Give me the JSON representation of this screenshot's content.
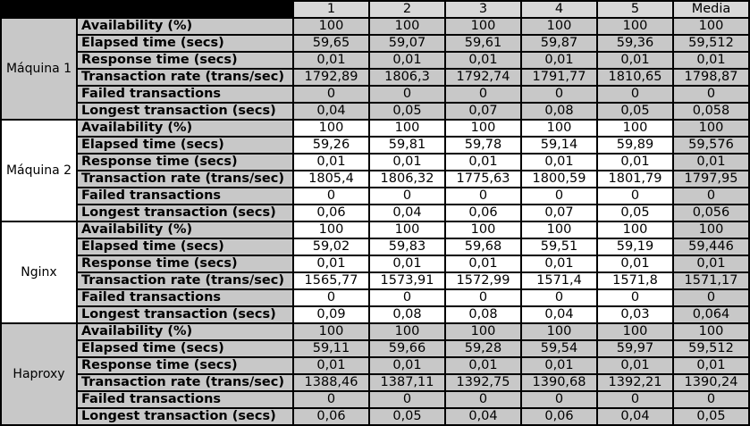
{
  "header": {
    "runs": [
      "1",
      "2",
      "3",
      "4",
      "5"
    ],
    "media": "Media"
  },
  "groups": [
    {
      "name": "Máquina 1",
      "rows": [
        {
          "metric": "Availability (%)",
          "values": [
            "100",
            "100",
            "100",
            "100",
            "100"
          ],
          "media": "100"
        },
        {
          "metric": "Elapsed time (secs)",
          "values": [
            "59,65",
            "59,07",
            "59,61",
            "59,87",
            "59,36"
          ],
          "media": "59,512"
        },
        {
          "metric": "Response time (secs)",
          "values": [
            "0,01",
            "0,01",
            "0,01",
            "0,01",
            "0,01"
          ],
          "media": "0,01"
        },
        {
          "metric": "Transaction rate (trans/sec)",
          "values": [
            "1792,89",
            "1806,3",
            "1792,74",
            "1791,77",
            "1810,65"
          ],
          "media": "1798,87"
        },
        {
          "metric": "Failed transactions",
          "values": [
            "0",
            "0",
            "0",
            "0",
            "0"
          ],
          "media": "0"
        },
        {
          "metric": "Longest transaction (secs)",
          "values": [
            "0,04",
            "0,05",
            "0,07",
            "0,08",
            "0,05"
          ],
          "media": "0,058"
        }
      ]
    },
    {
      "name": "Máquina 2",
      "rows": [
        {
          "metric": "Availability (%)",
          "values": [
            "100",
            "100",
            "100",
            "100",
            "100"
          ],
          "media": "100"
        },
        {
          "metric": "Elapsed time (secs)",
          "values": [
            "59,26",
            "59,81",
            "59,78",
            "59,14",
            "59,89"
          ],
          "media": "59,576"
        },
        {
          "metric": "Response time (secs)",
          "values": [
            "0,01",
            "0,01",
            "0,01",
            "0,01",
            "0,01"
          ],
          "media": "0,01"
        },
        {
          "metric": "Transaction rate (trans/sec)",
          "values": [
            "1805,4",
            "1806,32",
            "1775,63",
            "1800,59",
            "1801,79"
          ],
          "media": "1797,95"
        },
        {
          "metric": "Failed transactions",
          "values": [
            "0",
            "0",
            "0",
            "0",
            "0"
          ],
          "media": "0"
        },
        {
          "metric": "Longest transaction (secs)",
          "values": [
            "0,06",
            "0,04",
            "0,06",
            "0,07",
            "0,05"
          ],
          "media": "0,056"
        }
      ]
    },
    {
      "name": "Nginx",
      "rows": [
        {
          "metric": "Availability (%)",
          "values": [
            "100",
            "100",
            "100",
            "100",
            "100"
          ],
          "media": "100"
        },
        {
          "metric": "Elapsed time (secs)",
          "values": [
            "59,02",
            "59,83",
            "59,68",
            "59,51",
            "59,19"
          ],
          "media": "59,446"
        },
        {
          "metric": "Response time (secs)",
          "values": [
            "0,01",
            "0,01",
            "0,01",
            "0,01",
            "0,01"
          ],
          "media": "0,01"
        },
        {
          "metric": "Transaction rate (trans/sec)",
          "values": [
            "1565,77",
            "1573,91",
            "1572,99",
            "1571,4",
            "1571,8"
          ],
          "media": "1571,17"
        },
        {
          "metric": "Failed transactions",
          "values": [
            "0",
            "0",
            "0",
            "0",
            "0"
          ],
          "media": "0"
        },
        {
          "metric": "Longest transaction (secs)",
          "values": [
            "0,09",
            "0,08",
            "0,08",
            "0,04",
            "0,03"
          ],
          "media": "0,064"
        }
      ]
    },
    {
      "name": "Haproxy",
      "rows": [
        {
          "metric": "Availability (%)",
          "values": [
            "100",
            "100",
            "100",
            "100",
            "100"
          ],
          "media": "100"
        },
        {
          "metric": "Elapsed time (secs)",
          "values": [
            "59,11",
            "59,66",
            "59,28",
            "59,54",
            "59,97"
          ],
          "media": "59,512"
        },
        {
          "metric": "Response time (secs)",
          "values": [
            "0,01",
            "0,01",
            "0,01",
            "0,01",
            "0,01"
          ],
          "media": "0,01"
        },
        {
          "metric": "Transaction rate (trans/sec)",
          "values": [
            "1388,46",
            "1387,11",
            "1392,75",
            "1390,68",
            "1392,21"
          ],
          "media": "1390,24"
        },
        {
          "metric": "Failed transactions",
          "values": [
            "0",
            "0",
            "0",
            "0",
            "0"
          ],
          "media": "0"
        },
        {
          "metric": "Longest transaction (secs)",
          "values": [
            "0,06",
            "0,05",
            "0,04",
            "0,06",
            "0,04"
          ],
          "media": "0,05"
        }
      ]
    }
  ],
  "colors": {
    "grey_band": "#c8c8c8",
    "white_band": "#ffffff",
    "header": "#d8d8d8",
    "border": "#000000"
  }
}
